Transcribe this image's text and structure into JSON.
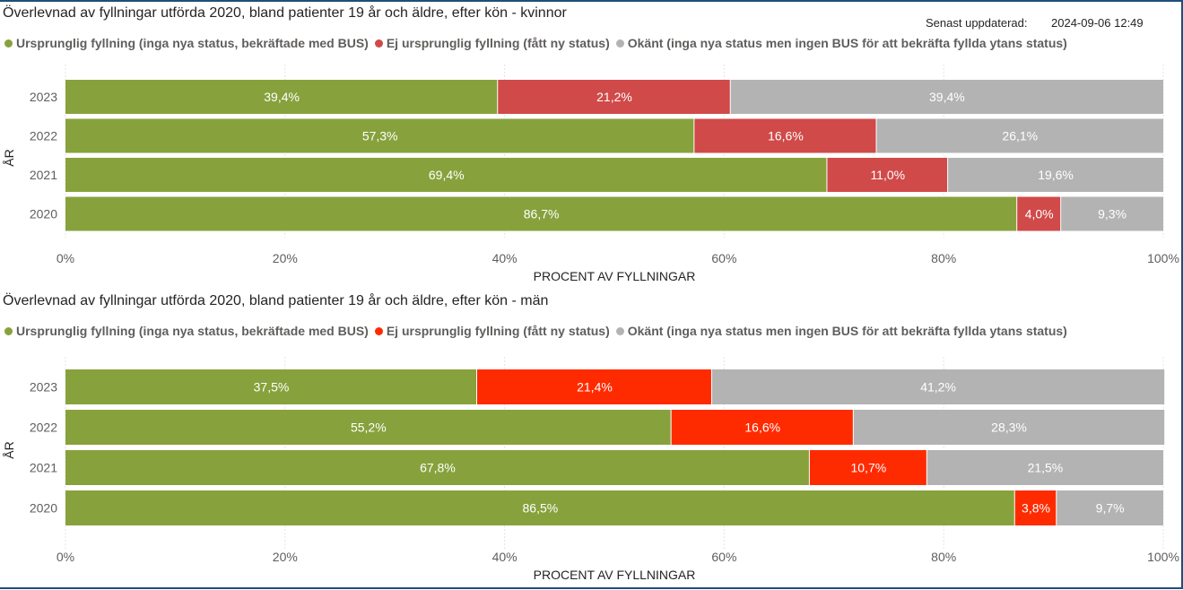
{
  "updated": {
    "label": "Senast uppdaterad:",
    "value": "2024-09-06 12:49"
  },
  "colors": {
    "green": "#87a23c",
    "red_women": "#d04a49",
    "red_men": "#ff2b00",
    "gray": "#b3b3b3",
    "grid": "#e4e4e4",
    "frame": "#1f4e79"
  },
  "chart_data": [
    {
      "type": "bar",
      "orientation": "horizontal",
      "stacked": "100%",
      "title": "Överlevnad av fyllningar utförda 2020, bland patienter 19 år och äldre, efter kön - kvinnor",
      "xlabel": "PROCENT AV FYLLNINGAR",
      "ylabel": "ÅR",
      "xlim": [
        0,
        100
      ],
      "xticks": [
        "0%",
        "20%",
        "40%",
        "60%",
        "80%",
        "100%"
      ],
      "grid": true,
      "legend_position": "top-left",
      "categories": [
        "2023",
        "2022",
        "2021",
        "2020"
      ],
      "series": [
        {
          "name": "Ursprunglig fyllning (inga nya status, bekräftade med BUS)",
          "color": "#87a23c",
          "values": [
            39.4,
            57.3,
            69.4,
            86.7
          ],
          "labels": [
            "39,4%",
            "57,3%",
            "69,4%",
            "86,7%"
          ]
        },
        {
          "name": "Ej ursprunglig fyllning (fått ny status)",
          "color": "#d04a49",
          "values": [
            21.2,
            16.6,
            11.0,
            4.0
          ],
          "labels": [
            "21,2%",
            "16,6%",
            "11,0%",
            "4,0%"
          ]
        },
        {
          "name": "Okänt (inga nya status men ingen BUS för att bekräfta fyllda ytans status)",
          "color": "#b3b3b3",
          "values": [
            39.4,
            26.1,
            19.6,
            9.3
          ],
          "labels": [
            "39,4%",
            "26,1%",
            "19,6%",
            "9,3%"
          ]
        }
      ]
    },
    {
      "type": "bar",
      "orientation": "horizontal",
      "stacked": "100%",
      "title": "Överlevnad av fyllningar utförda 2020, bland patienter 19 år och äldre, efter kön - män",
      "xlabel": "PROCENT AV FYLLNINGAR",
      "ylabel": "ÅR",
      "xlim": [
        0,
        100
      ],
      "xticks": [
        "0%",
        "20%",
        "40%",
        "60%",
        "80%",
        "100%"
      ],
      "grid": true,
      "legend_position": "top-left",
      "categories": [
        "2023",
        "2022",
        "2021",
        "2020"
      ],
      "series": [
        {
          "name": "Ursprunglig fyllning (inga nya status, bekräftade med BUS)",
          "color": "#87a23c",
          "values": [
            37.5,
            55.2,
            67.8,
            86.5
          ],
          "labels": [
            "37,5%",
            "55,2%",
            "67,8%",
            "86,5%"
          ]
        },
        {
          "name": "Ej ursprunglig fyllning (fått ny status)",
          "color": "#ff2b00",
          "values": [
            21.4,
            16.6,
            10.7,
            3.8
          ],
          "labels": [
            "21,4%",
            "16,6%",
            "10,7%",
            "3,8%"
          ]
        },
        {
          "name": "Okänt (inga nya status men ingen BUS för att bekräfta fyllda ytans status)",
          "color": "#b3b3b3",
          "values": [
            41.2,
            28.3,
            21.5,
            9.7
          ],
          "labels": [
            "41,2%",
            "28,3%",
            "21,5%",
            "9,7%"
          ]
        }
      ]
    }
  ]
}
